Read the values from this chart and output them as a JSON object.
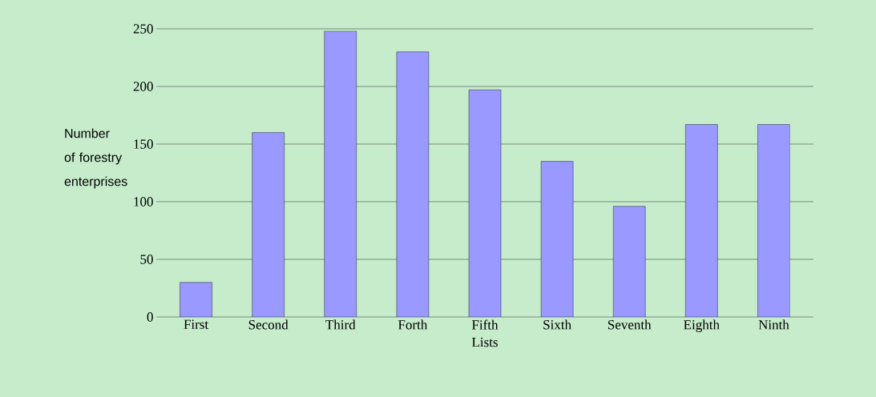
{
  "chart_data": {
    "type": "bar",
    "xlabel": "Lists",
    "ylabel": "Number of forestry enterprises",
    "categories": [
      "First",
      "Second",
      "Third",
      "Forth",
      "Fifth",
      "Sixth",
      "Seventh",
      "Eighth",
      "Ninth"
    ],
    "values": [
      30,
      160,
      248,
      230,
      197,
      135,
      96,
      167,
      167
    ],
    "color": "#9999ff",
    "ylim": [
      0,
      250
    ],
    "yticks": [
      0,
      50,
      100,
      150,
      200,
      250
    ],
    "grid": "y"
  }
}
